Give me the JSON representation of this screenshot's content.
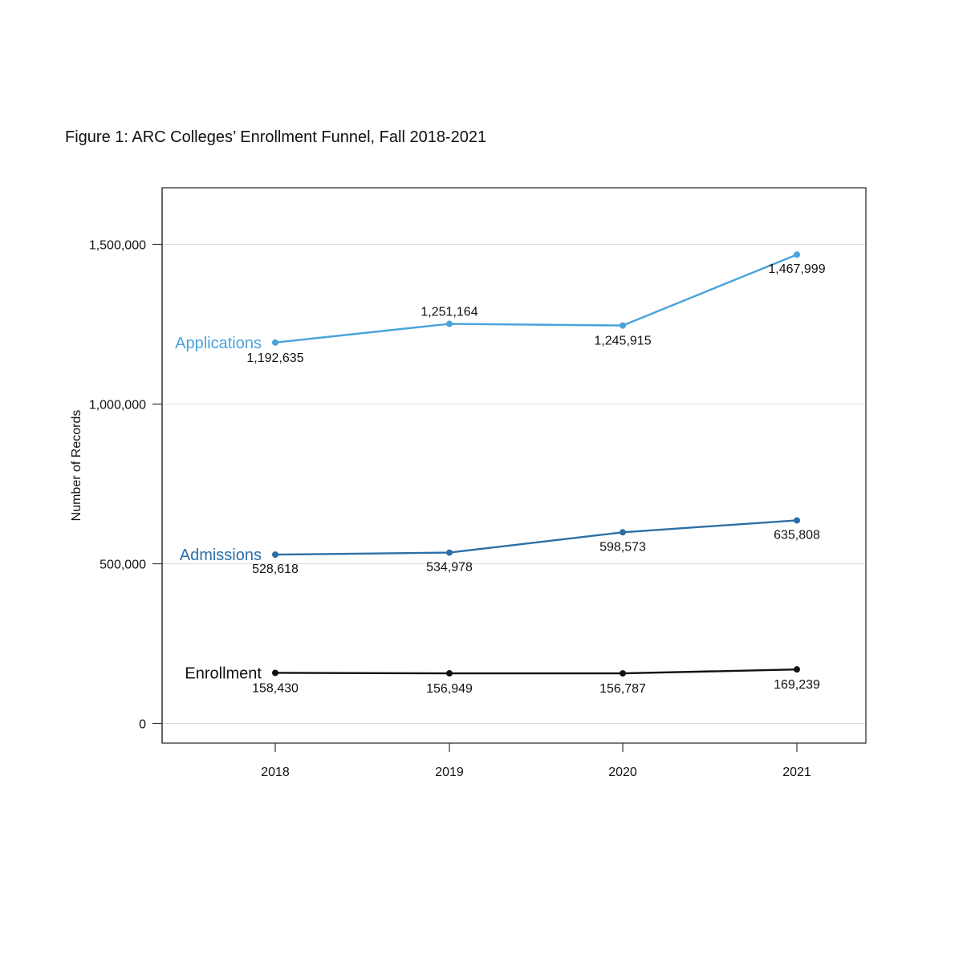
{
  "figure_title": "Figure 1: ARC Colleges’ Enrollment Funnel, Fall 2018-2021",
  "chart_data": {
    "type": "line",
    "title": "",
    "xlabel": "",
    "ylabel": "Number of Records",
    "x": [
      "2018",
      "2019",
      "2020",
      "2021"
    ],
    "ylim": [
      -60000,
      1680000
    ],
    "yticks": [
      {
        "value": 0,
        "label": "0"
      },
      {
        "value": 500000,
        "label": "500,000"
      },
      {
        "value": 1000000,
        "label": "1,000,000"
      },
      {
        "value": 1500000,
        "label": "1,500,000"
      }
    ],
    "grid": true,
    "legend": "none (series labelled inline at left)",
    "series": [
      {
        "name": "Applications",
        "color": "#4aa3db",
        "values": [
          1192635,
          1251164,
          1245915,
          1467999
        ],
        "labels": [
          "1,192,635",
          "1,251,164",
          "1,245,915",
          "1,467,999"
        ]
      },
      {
        "name": "Admissions",
        "color": "#2c6fa6",
        "values": [
          528618,
          534978,
          598573,
          635808
        ],
        "labels": [
          "528,618",
          "534,978",
          "598,573",
          "635,808"
        ]
      },
      {
        "name": "Enrollment",
        "color": "#111111",
        "values": [
          158430,
          156949,
          156787,
          169239
        ],
        "labels": [
          "158,430",
          "156,949",
          "156,787",
          "169,239"
        ]
      }
    ]
  }
}
